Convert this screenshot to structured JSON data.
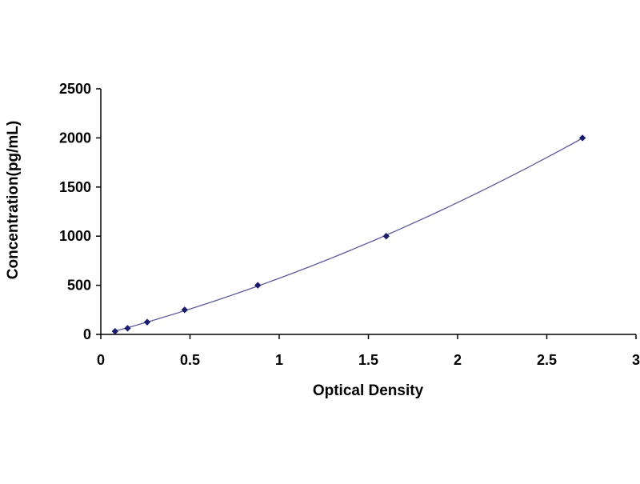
{
  "chart_data": {
    "type": "scatter",
    "title": "",
    "xlabel": "Optical Density",
    "ylabel": "Concentration(pg/mL)",
    "xlim": [
      0,
      3
    ],
    "ylim": [
      0,
      2500
    ],
    "x_ticks": [
      0,
      0.5,
      1,
      1.5,
      2,
      2.5,
      3
    ],
    "x_tick_labels": [
      "0",
      "0.5",
      "1",
      "1.5",
      "2",
      "2.5",
      "3"
    ],
    "y_ticks": [
      0,
      500,
      1000,
      1500,
      2000,
      2500
    ],
    "y_tick_labels": [
      "0",
      "500",
      "1000",
      "1500",
      "2000",
      "2500"
    ],
    "grid": false,
    "legend": "none",
    "series": [
      {
        "x": [
          0.08,
          0.15,
          0.26,
          0.47,
          0.88,
          1.6,
          2.7
        ],
        "y": [
          31.2,
          62.5,
          125,
          250,
          500,
          1000,
          2000
        ],
        "marker": "diamond",
        "fitted_curve": true
      }
    ],
    "colors": {
      "points": "#1a1a6e",
      "curve": "#5a5a9e",
      "axis": "#000000"
    }
  }
}
